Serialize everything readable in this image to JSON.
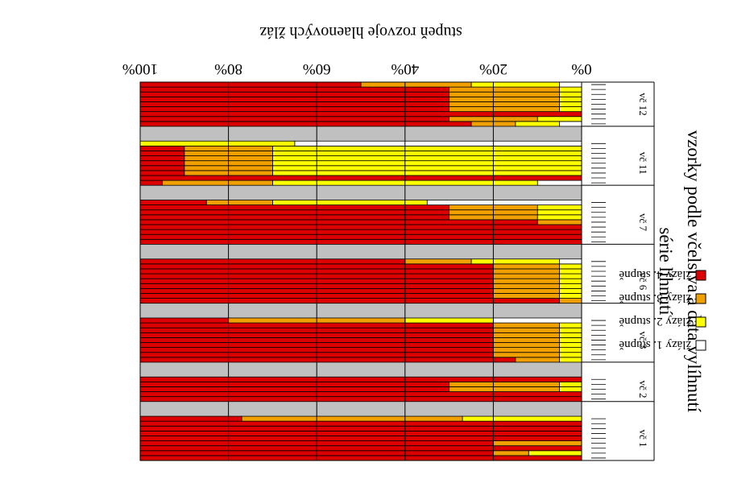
{
  "chart_data": {
    "type": "bar",
    "orientation": "horizontal-stacked-100",
    "rendered_rotation": "180deg",
    "title": "stupeň rozvoje hlaenových žláz",
    "ylabel_lines": [
      "vzorky podle včelstva a data vylíhnutí",
      "série líhnutí"
    ],
    "x_ticks": [
      "0%",
      "20%",
      "40%",
      "60%",
      "80%",
      "100%"
    ],
    "xlim": [
      0,
      100
    ],
    "grid": true,
    "legend_position": "right",
    "series": [
      {
        "name": "žlázy 1. stupně",
        "color": "#ffffff"
      },
      {
        "name": "žlázy 2. stupně",
        "color": "#ffff00"
      },
      {
        "name": "žlázy 3. stupně",
        "color": "#f0a000"
      },
      {
        "name": "žlázy 4. stupně",
        "color": "#dd0000"
      }
    ],
    "groups": [
      {
        "label": "vč 1",
        "rows": [
          [
            0,
            0,
            0,
            100
          ],
          [
            0,
            12,
            8,
            80
          ],
          [
            0,
            0,
            0,
            100
          ],
          [
            0,
            0,
            20,
            80
          ],
          [
            0,
            0,
            0,
            100
          ],
          [
            0,
            0,
            0,
            100
          ],
          [
            0,
            0,
            0,
            100
          ],
          [
            0,
            0,
            0,
            100
          ],
          [
            0,
            27,
            50,
            23
          ]
        ]
      },
      {
        "label": "vč 2",
        "rows": [
          [
            0,
            0,
            0,
            100
          ],
          [
            0,
            0,
            0,
            100
          ],
          [
            0,
            5,
            25,
            70
          ],
          [
            0,
            5,
            25,
            70
          ],
          [
            0,
            0,
            0,
            100
          ]
        ]
      },
      {
        "label": "vč 3",
        "rows": [
          [
            0,
            5,
            10,
            85
          ],
          [
            0,
            5,
            15,
            80
          ],
          [
            0,
            5,
            15,
            80
          ],
          [
            0,
            5,
            15,
            80
          ],
          [
            0,
            5,
            15,
            80
          ],
          [
            0,
            5,
            15,
            80
          ],
          [
            0,
            5,
            15,
            80
          ],
          [
            0,
            5,
            15,
            80
          ],
          [
            20,
            20,
            40,
            20
          ]
        ]
      },
      {
        "label": "vč 6",
        "rows": [
          [
            0,
            0,
            5,
            95
          ],
          [
            0,
            5,
            15,
            80
          ],
          [
            0,
            5,
            15,
            80
          ],
          [
            0,
            5,
            15,
            80
          ],
          [
            0,
            5,
            15,
            80
          ],
          [
            0,
            5,
            15,
            80
          ],
          [
            0,
            5,
            15,
            80
          ],
          [
            0,
            5,
            15,
            80
          ],
          [
            5,
            20,
            15,
            60
          ]
        ]
      },
      {
        "label": "vč 7",
        "rows": [
          [
            0,
            0,
            0,
            100
          ],
          [
            0,
            0,
            0,
            100
          ],
          [
            0,
            0,
            0,
            100
          ],
          [
            0,
            0,
            0,
            100
          ],
          [
            0,
            0,
            10,
            90
          ],
          [
            0,
            10,
            20,
            70
          ],
          [
            0,
            10,
            20,
            70
          ],
          [
            0,
            10,
            20,
            70
          ],
          [
            35,
            35,
            15,
            15
          ]
        ]
      },
      {
        "label": "vč 11",
        "rows": [
          [
            10,
            60,
            25,
            5
          ],
          [
            0,
            0,
            0,
            100
          ],
          [
            0,
            70,
            20,
            10
          ],
          [
            0,
            70,
            20,
            10
          ],
          [
            0,
            70,
            20,
            10
          ],
          [
            0,
            70,
            20,
            10
          ],
          [
            0,
            70,
            20,
            10
          ],
          [
            0,
            70,
            20,
            10
          ],
          [
            65,
            35,
            0,
            0
          ]
        ]
      },
      {
        "label": "vč 12",
        "rows": [
          [
            5,
            10,
            10,
            75
          ],
          [
            0,
            10,
            20,
            70
          ],
          [
            0,
            0,
            0,
            100
          ],
          [
            0,
            5,
            25,
            70
          ],
          [
            0,
            5,
            25,
            70
          ],
          [
            0,
            5,
            25,
            70
          ],
          [
            0,
            5,
            25,
            70
          ],
          [
            0,
            5,
            25,
            70
          ],
          [
            5,
            20,
            25,
            50
          ]
        ]
      }
    ]
  }
}
